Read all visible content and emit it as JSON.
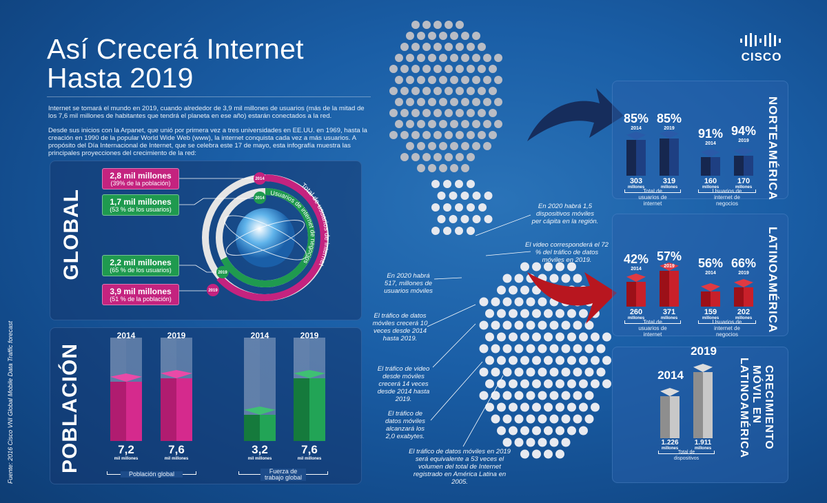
{
  "header": {
    "title_line1": "Así Crecerá Internet",
    "title_line2": "Hasta 2019",
    "logo": "CISCO"
  },
  "intro": {
    "p1": "Internet se tomará el mundo en 2019, cuando alrededor de 3,9 mil millones de usuarios (más de la mitad de los 7,6 mil millones de habitantes que tendrá el planeta en ese año) estarán conectados a la red.",
    "p2": "Desde sus inicios con la Arpanet, que unió por primera vez a tres universidades en EE.UU. en 1969, hasta la creación en 1990 de la popular World Wide Web (www), la internet conquista cada vez a más usuarios. A propósito del Día Internacional de Internet, que se celebra este 17 de mayo, esta infografía muestra las principales proyecciones del crecimiento de la red:"
  },
  "source": "Fuente: 2016 Cisco VNI Global Mobile Data Traffic forecast",
  "global": {
    "heading": "GLOBAL",
    "ring_outer_label": "Total de usuarios de internet",
    "ring_inner_label": "Usuarios de internet de negocios",
    "year_start": "2014",
    "year_end": "2019",
    "callouts": [
      {
        "value": "2,8 mil millones",
        "detail": "(39% de la población)"
      },
      {
        "value": "1,7 mil millones",
        "detail": "(53 % de los usuarios)"
      },
      {
        "value": "2,2 mil millones",
        "detail": "(65 % de los usuarios)"
      },
      {
        "value": "3,9 mil millones",
        "detail": "(51 % de la población)"
      }
    ],
    "colors": {
      "total": "#c4237f",
      "business": "#1f9a4f"
    }
  },
  "poblacion": {
    "heading": "POBLACIÓN",
    "unit": "mil millones",
    "bars": [
      {
        "year": "2014",
        "value": 7.2,
        "label": "7,2"
      },
      {
        "year": "2019",
        "value": 7.6,
        "label": "7,6"
      },
      {
        "year": "2014",
        "value": 3.2,
        "label": "3,2"
      },
      {
        "year": "2019",
        "value": 7.6,
        "label": "7,6"
      }
    ],
    "groups": [
      "Población global",
      "Fuerza de trabajo global"
    ]
  },
  "norteamerica": {
    "heading": "NORTEAMÉRICA",
    "unit": "millones",
    "bars": [
      {
        "pct": "85%",
        "year": "2014",
        "value": 303
      },
      {
        "pct": "85%",
        "year": "2019",
        "value": 319
      },
      {
        "pct": "91%",
        "year": "2014",
        "value": 160
      },
      {
        "pct": "94%",
        "year": "2019",
        "value": 170
      }
    ],
    "groups": [
      "Total de usuarios de internet",
      "Usuarios de internet de negocios"
    ]
  },
  "latinoamerica": {
    "heading": "LATINOAMÉRICA",
    "unit": "millones",
    "bars": [
      {
        "pct": "42%",
        "year": "2014",
        "value": 260
      },
      {
        "pct": "57%",
        "year": "2019",
        "value": 371
      },
      {
        "pct": "56%",
        "year": "2014",
        "value": 159
      },
      {
        "pct": "66%",
        "year": "2019",
        "value": 202
      }
    ],
    "groups": [
      "Total de usuarios de internet",
      "Usuarios de internet de negocios"
    ]
  },
  "movil": {
    "heading_line1": "CRECIMIENTO",
    "heading_line2": "MÓVIL EN",
    "heading_line3": "LATINOAMÉRICA",
    "unit": "millones",
    "bars": [
      {
        "year": "2014",
        "value": 1226,
        "label": "1.226"
      },
      {
        "year": "2019",
        "value": 1911,
        "label": "1.911"
      }
    ],
    "group": "Total de dispositivos"
  },
  "notes": [
    "En 2020 habrá 1,5 dispositivos móviles per cápita en la región.",
    "El video corresponderá el 72 % del tráfico de datos móviles en 2019.",
    "En 2020 habrá 517, millones de usuarios móviles",
    "El tráfico de datos móviles crecerá 10 veces desde 2014 hasta 2019.",
    "El tráfico de video desde móviles crecerá 14 veces desde 2014 hasta 2019.",
    "El tráfico de datos móviles alcanzará los 2,0 exabytes.",
    "El tráfico de datos móviles en 2019 será equivalente a 53 veces el volumen del total de Internet registrado en América Latina en 2005."
  ]
}
